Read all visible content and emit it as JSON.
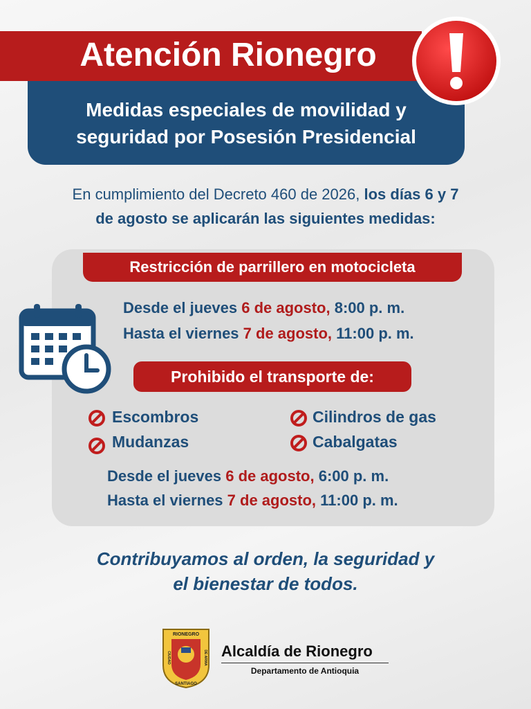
{
  "header": {
    "title": "Atención Rionegro",
    "subtitle_lines": [
      "Medidas especiales de movilidad y",
      "seguridad por Posesión Presidencial"
    ]
  },
  "intro": {
    "line1": {
      "regular": "En cumplimiento del Decreto 460 de 2026,",
      "bold": "los días 6 y 7"
    },
    "line2": "de agosto se aplicarán las siguientes medidas:"
  },
  "sections": [
    {
      "title": "Restricción de parrillero en motocicleta",
      "schedule": [
        [
          "Desde el jueves",
          "6 de agosto,",
          "8:00 p. m."
        ],
        [
          "Hasta el viernes",
          "7 de agosto,",
          "11:00 p. m."
        ]
      ]
    },
    {
      "title": "Prohibido el transporte de:",
      "items": [
        "Escombros",
        "Mudanzas",
        "Cilindros de gas",
        "Cabalgatas"
      ],
      "schedule": [
        [
          "Desde el jueves",
          "6 de agosto,",
          "6:00 p. m."
        ],
        [
          "Hasta el viernes",
          "7 de agosto,",
          "11:00 p. m."
        ]
      ]
    }
  ],
  "closing_lines": [
    "Contribuyamos al orden, la seguridad y",
    "el bienestar de todos."
  ],
  "footer": {
    "seal": {
      "top": "RIONEGRO",
      "left": "CIUDAD",
      "right": "DE ARMA",
      "bottom": "SANTIAGO"
    },
    "name": "Alcaldía de Rionegro",
    "department": "Departamento de Antioquia"
  }
}
